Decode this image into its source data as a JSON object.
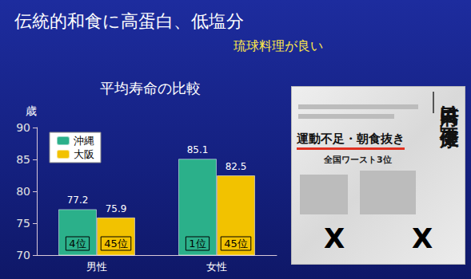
{
  "heading": "伝統的和食に高蛋白、低塩分",
  "subheading": "琉球料理が良い",
  "chart_data": {
    "type": "bar",
    "title": "平均寿命の比較",
    "ylabel": "歳",
    "categories": [
      "男性",
      "女性"
    ],
    "series": [
      {
        "name": "沖縄",
        "color": "#2bb08a",
        "values": [
          77.2,
          85.1
        ],
        "ranks": [
          "4位",
          "1位"
        ]
      },
      {
        "name": "大阪",
        "color": "#f2c200",
        "values": [
          75.9,
          82.5
        ],
        "ranks": [
          "45位",
          "45位"
        ]
      }
    ],
    "ylim": [
      70,
      90
    ],
    "yticks": [
      70,
      75,
      80,
      85,
      90
    ],
    "grid": false,
    "legend": "top-left",
    "data_labels": true
  },
  "clipping": {
    "headline": "府民は「不健康」",
    "subhead": "運動不足・朝食抜き",
    "caption": "全国ワースト3位",
    "marks": [
      "X",
      "X"
    ]
  }
}
